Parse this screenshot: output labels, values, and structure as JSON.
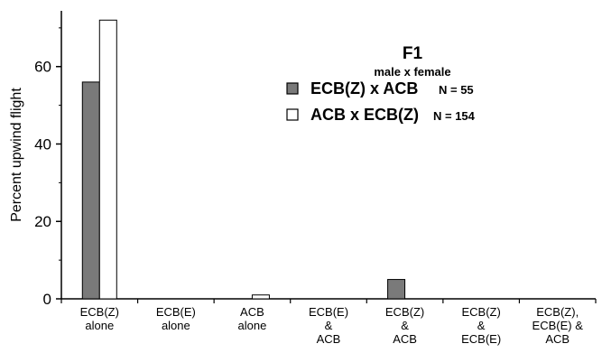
{
  "colors": {
    "series1": "#7a7a7a",
    "series2": "#ffffff",
    "stroke": "#000000"
  },
  "chart_data": {
    "type": "bar",
    "ylabel": "Percent upwind flight",
    "xlabel": "",
    "ylim": [
      0,
      73
    ],
    "yticks": [
      0,
      20,
      40,
      60
    ],
    "categories": [
      [
        "ECB(Z)",
        "alone"
      ],
      [
        "ECB(E)",
        "alone"
      ],
      [
        "ACB",
        "alone"
      ],
      [
        "ECB(E)",
        "&",
        "ACB"
      ],
      [
        "ECB(Z)",
        "&",
        "ACB"
      ],
      [
        "ECB(Z)",
        "&",
        "ECB(E)"
      ],
      [
        "ECB(Z),",
        "ECB(E) &",
        "ACB"
      ]
    ],
    "series": [
      {
        "name": "ECB(Z) x ACB",
        "n_label": "N = 55",
        "values": [
          56,
          0,
          0,
          0,
          5,
          0,
          0
        ]
      },
      {
        "name": "ACB x ECB(Z)",
        "n_label": "N = 154",
        "values": [
          72,
          0,
          1,
          0,
          0,
          0,
          0
        ]
      }
    ],
    "legend": {
      "title": "F1",
      "subtitle": "male x female",
      "placement": "top-right"
    }
  }
}
